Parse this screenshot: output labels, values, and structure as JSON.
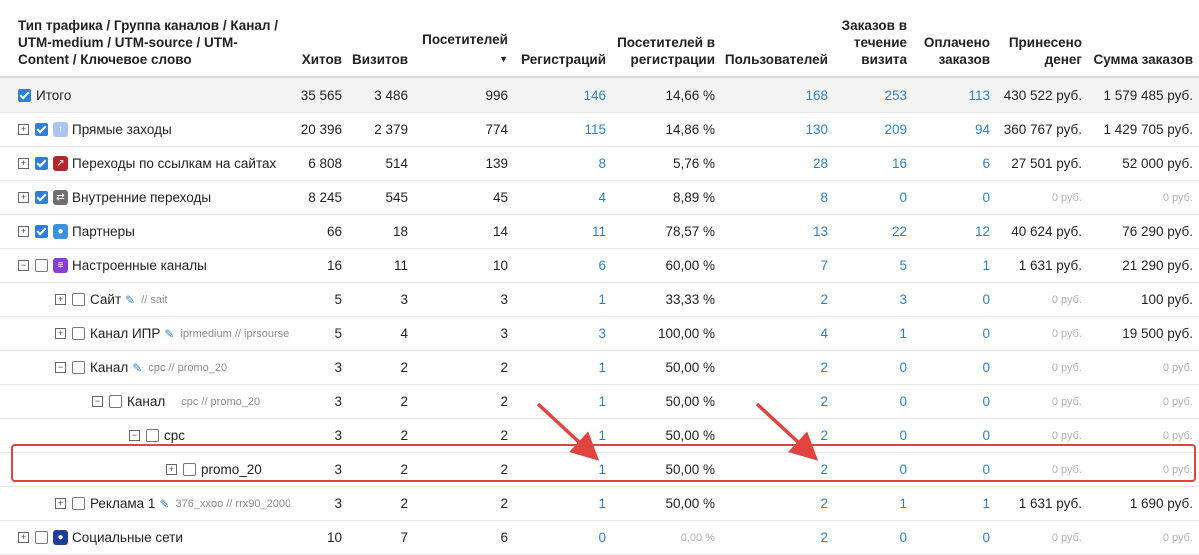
{
  "columns": [
    {
      "key": "name",
      "label": "Тип трафика / Группа каналов / Канал / UTM-medium / UTM-source / UTM-Content / Ключевое слово"
    },
    {
      "key": "hits",
      "label": "Хитов"
    },
    {
      "key": "visits",
      "label": "Визитов"
    },
    {
      "key": "visitors",
      "label": "Посетителей",
      "sort": "▼"
    },
    {
      "key": "registrations",
      "label": "Регистраций"
    },
    {
      "key": "visitors_reg",
      "label": "Посетителей в регистрации"
    },
    {
      "key": "users",
      "label": "Пользователей"
    },
    {
      "key": "orders_visit",
      "label": "Заказов в течение визита"
    },
    {
      "key": "paid_orders",
      "label": "Оплачено заказов"
    },
    {
      "key": "revenue",
      "label": "Принесено денег"
    },
    {
      "key": "orders_sum",
      "label": "Сумма заказов"
    }
  ],
  "rows": [
    {
      "name": "Итого",
      "indent": 0,
      "toggle": "",
      "checked": true,
      "icon": "",
      "sub": "",
      "hits": "35 565",
      "visits": "3 486",
      "visitors": "996",
      "registrations": "146",
      "visitors_reg": "14,66 %",
      "users": "168",
      "orders_visit": "253",
      "paid_orders": "113",
      "revenue": "430 522 руб.",
      "orders_sum": "1 579 485 руб.",
      "total": true
    },
    {
      "name": "Прямые заходы",
      "indent": 0,
      "toggle": "+",
      "checked": true,
      "icon": "arrow-up-icon",
      "sub": "",
      "hits": "20 396",
      "visits": "2 379",
      "visitors": "774",
      "registrations": "115",
      "visitors_reg": "14,86 %",
      "users": "130",
      "orders_visit": "209",
      "paid_orders": "94",
      "revenue": "360 767 руб.",
      "orders_sum": "1 429 705 руб."
    },
    {
      "name": "Переходы по ссылкам на сайтах",
      "indent": 0,
      "toggle": "+",
      "checked": true,
      "icon": "external-link-icon",
      "sub": "",
      "hits": "6 808",
      "visits": "514",
      "visitors": "139",
      "registrations": "8",
      "visitors_reg": "5,76 %",
      "users": "28",
      "orders_visit": "16",
      "paid_orders": "6",
      "revenue": "27 501 руб.",
      "orders_sum": "52 000 руб."
    },
    {
      "name": "Внутренние переходы",
      "indent": 0,
      "toggle": "+",
      "checked": true,
      "icon": "swap-icon",
      "sub": "",
      "hits": "8 245",
      "visits": "545",
      "visitors": "45",
      "registrations": "4",
      "visitors_reg": "8,89 %",
      "users": "8",
      "orders_visit": "0",
      "paid_orders": "0",
      "revenue": "0 руб.",
      "orders_sum": "0 руб."
    },
    {
      "name": "Партнеры",
      "indent": 0,
      "toggle": "+",
      "checked": true,
      "icon": "chat-icon",
      "sub": "",
      "hits": "66",
      "visits": "18",
      "visitors": "14",
      "registrations": "11",
      "visitors_reg": "78,57 %",
      "users": "13",
      "orders_visit": "22",
      "paid_orders": "12",
      "revenue": "40 624 руб.",
      "orders_sum": "76 290 руб."
    },
    {
      "name": "Настроенные каналы",
      "indent": 0,
      "toggle": "−",
      "checked": false,
      "icon": "list-icon",
      "sub": "",
      "hits": "16",
      "visits": "11",
      "visitors": "10",
      "registrations": "6",
      "visitors_reg": "60,00 %",
      "users": "7",
      "orders_visit": "5",
      "paid_orders": "1",
      "revenue": "1 631 руб.",
      "orders_sum": "21 290 руб."
    },
    {
      "name": "Сайт",
      "indent": 1,
      "toggle": "+",
      "checked": false,
      "icon": "",
      "edit": true,
      "sub": "// sait",
      "hits": "5",
      "visits": "3",
      "visitors": "3",
      "registrations": "1",
      "visitors_reg": "33,33 %",
      "users": "2",
      "orders_visit": "3",
      "paid_orders": "0",
      "revenue": "0 руб.",
      "orders_sum": "100 руб."
    },
    {
      "name": "Канал ИПР",
      "indent": 1,
      "toggle": "+",
      "checked": false,
      "icon": "",
      "edit": true,
      "sub": "iprmedium // iprsourse",
      "hits": "5",
      "visits": "4",
      "visitors": "3",
      "registrations": "3",
      "visitors_reg": "100,00 %",
      "users": "4",
      "orders_visit": "1",
      "paid_orders": "0",
      "revenue": "0 руб.",
      "orders_sum": "19 500 руб."
    },
    {
      "name": "Канал",
      "indent": 1,
      "toggle": "−",
      "checked": false,
      "icon": "",
      "edit": true,
      "sub": "cpc // promo_20",
      "hits": "3",
      "visits": "2",
      "visitors": "2",
      "registrations": "1",
      "visitors_reg": "50,00 %",
      "users": "2",
      "orders_visit": "0",
      "paid_orders": "0",
      "revenue": "0 руб.",
      "orders_sum": "0 руб."
    },
    {
      "name": "Канал",
      "indent": 2,
      "toggle": "−",
      "checked": false,
      "icon": "",
      "edit": false,
      "sub": "cpc // promo_20",
      "hits": "3",
      "visits": "2",
      "visitors": "2",
      "registrations": "1",
      "visitors_reg": "50,00 %",
      "users": "2",
      "orders_visit": "0",
      "paid_orders": "0",
      "revenue": "0 руб.",
      "orders_sum": "0 руб."
    },
    {
      "name": "cpc",
      "indent": 3,
      "toggle": "−",
      "checked": false,
      "icon": "",
      "edit": false,
      "sub": "",
      "hits": "3",
      "visits": "2",
      "visitors": "2",
      "registrations": "1",
      "visitors_reg": "50,00 %",
      "users": "2",
      "orders_visit": "0",
      "paid_orders": "0",
      "revenue": "0 руб.",
      "orders_sum": "0 руб."
    },
    {
      "name": "promo_20",
      "indent": 4,
      "toggle": "+",
      "checked": false,
      "icon": "",
      "edit": false,
      "sub": "",
      "hits": "3",
      "visits": "2",
      "visitors": "2",
      "registrations": "1",
      "visitors_reg": "50,00 %",
      "users": "2",
      "orders_visit": "0",
      "paid_orders": "0",
      "revenue": "0 руб.",
      "orders_sum": "0 руб.",
      "highlighted": true
    },
    {
      "name": "Реклама 1",
      "indent": 1,
      "toggle": "+",
      "checked": false,
      "icon": "",
      "edit": true,
      "sub": "376_xxoo // rrx90_2000",
      "hits": "3",
      "visits": "2",
      "visitors": "2",
      "registrations": "1",
      "visitors_reg": "50,00 %",
      "users": "2",
      "orders_visit": "1",
      "paid_orders": "1",
      "revenue": "1 631 руб.",
      "orders_sum": "1 690 руб."
    },
    {
      "name": "Социальные сети",
      "indent": 0,
      "toggle": "+",
      "checked": false,
      "icon": "person-icon",
      "sub": "",
      "hits": "10",
      "visits": "7",
      "visitors": "6",
      "registrations": "0",
      "visitors_reg": "0,00 %",
      "users": "2",
      "orders_visit": "0",
      "paid_orders": "0",
      "revenue": "0 руб.",
      "orders_sum": "0 руб."
    }
  ],
  "icon_colors": {
    "arrow-up-icon": "#a9c4f0",
    "external-link-icon": "#b2282c",
    "swap-icon": "#6f6f6f",
    "chat-icon": "#3d8fe0",
    "list-icon": "#8a3fd4",
    "person-icon": "#1e3e9a"
  },
  "colors": {
    "link": "#2f7fc8",
    "highlight": "#e0443e",
    "muted": "#b0b0b0"
  }
}
